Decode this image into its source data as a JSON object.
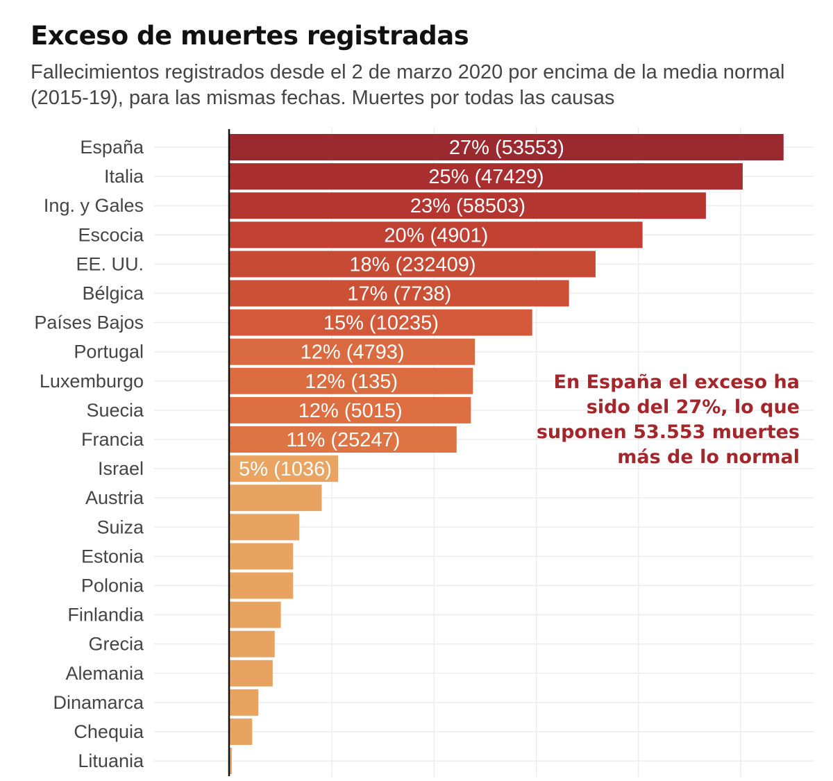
{
  "title": "Exceso de muertes registradas",
  "subtitle": "Fallecimientos registrados desde el 2 de marzo 2020 por encima de la media normal (2015-19), para las mismas fechas. Muertes por todas las causas",
  "annotation": "En España el exceso ha sido del 27%, lo que suponen 53.553 muertes más de lo normal",
  "chart_data": {
    "type": "bar",
    "orientation": "horizontal",
    "xlim": [
      0,
      28.5
    ],
    "grid": true,
    "categories": [
      "España",
      "Italia",
      "Ing. y Gales",
      "Escocia",
      "EE. UU.",
      "Bélgica",
      "Países Bajos",
      "Portugal",
      "Luxemburgo",
      "Suecia",
      "Francia",
      "Israel",
      "Austria",
      "Suiza",
      "Estonia",
      "Polonia",
      "Finlandia",
      "Grecia",
      "Alemania",
      "Dinamarca",
      "Chequia",
      "Lituania"
    ],
    "values": [
      27.1,
      25.1,
      23.3,
      20.2,
      17.9,
      16.6,
      14.8,
      12.0,
      11.9,
      11.8,
      11.1,
      5.3,
      4.5,
      3.4,
      3.1,
      3.1,
      2.5,
      2.2,
      2.1,
      1.4,
      1.1,
      0.1
    ],
    "labels": [
      "27% (53553)",
      "25% (47429)",
      "23% (58503)",
      "20% (4901)",
      "18% (232409)",
      "17% (7738)",
      "15% (10235)",
      "12% (4793)",
      "12% (135)",
      "12% (5015)",
      "11% (25247)",
      "5% (1036)",
      "",
      "",
      "",
      "",
      "",
      "",
      "",
      "",
      "",
      ""
    ],
    "colors": [
      "#9a2a2f",
      "#a82e30",
      "#b53631",
      "#c04132",
      "#c64a34",
      "#cb5036",
      "#d25a3a",
      "#da6a3f",
      "#db6c40",
      "#dc6e41",
      "#de7444",
      "#e9a462",
      "#e8a360",
      "#e8a360",
      "#e8a360",
      "#e8a360",
      "#e8a360",
      "#e8a360",
      "#e8a360",
      "#e8a360",
      "#e8a360",
      "#e8a360"
    ]
  }
}
